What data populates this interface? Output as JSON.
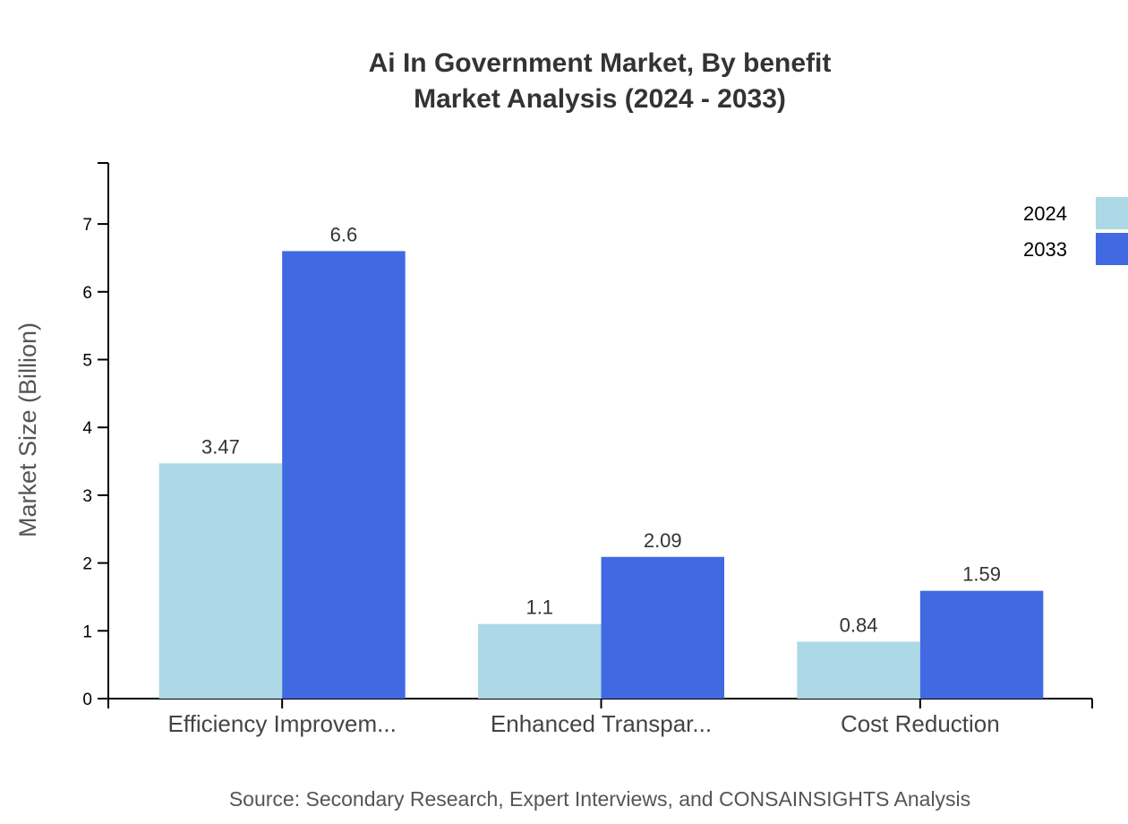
{
  "chart_data": {
    "type": "bar",
    "title": "Ai In Government Market, By benefit",
    "subtitle": "Market Analysis (2024 - 2033)",
    "xlabel": "",
    "ylabel": "Market Size (Billion)",
    "ylim": [
      0,
      7.9
    ],
    "yticks": [
      0,
      1,
      2,
      3,
      4,
      5,
      6,
      7
    ],
    "categories": [
      "Efficiency Improvem...",
      "Enhanced Transpar...",
      "Cost Reduction"
    ],
    "series": [
      {
        "name": "2024",
        "values": [
          3.47,
          1.1,
          0.84
        ],
        "color": "#ADD8E6"
      },
      {
        "name": "2033",
        "values": [
          6.6,
          2.09,
          1.59
        ],
        "color": "#4169E1"
      }
    ],
    "grid": false,
    "legend": "top-right",
    "source": "Source: Secondary Research, Expert Interviews, and CONSAINSIGHTS Analysis"
  }
}
